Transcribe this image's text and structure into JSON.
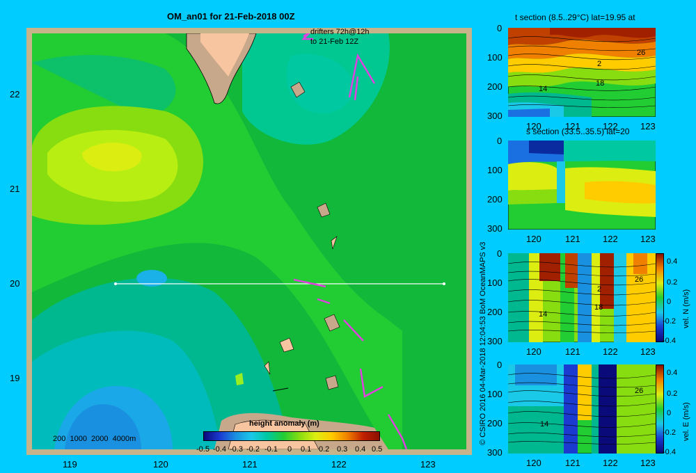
{
  "map": {
    "title": "OM_an01 for 21-Feb-2018 00Z",
    "drifters_line1": "drifters 72h@12h",
    "drifters_line2": "to 21-Feb 12Z",
    "depth_legend": "200  1000  2000  4000m",
    "lat_ticks": [
      "22",
      "21",
      "20",
      "19"
    ],
    "lon_ticks": [
      "119",
      "120",
      "121",
      "122",
      "123"
    ],
    "colorbar_title": "height anomaly  (m)",
    "colorbar_ticks": [
      "-0.5",
      "-0.4",
      "-0.3",
      "-0.2",
      "-0.1",
      "0",
      "0.1",
      "0.2",
      "0.3",
      "0.4",
      "0.5"
    ],
    "colors": {
      "land": "#f7c59f",
      "shelf": "#c8a88a",
      "frame": "#c8b48a",
      "drifter": "#e040e0"
    }
  },
  "credit": "© CSIRO 2016   04-Mar-2018 12:04:53 BoM OceanMAPS v3",
  "panels": [
    {
      "title": "t section (8.5..29°C) lat=19.95 at",
      "depth_ticks": [
        "0",
        "100",
        "200",
        "300"
      ],
      "lon_ticks": [
        "120",
        "121",
        "122",
        "123"
      ],
      "contours": [
        "26",
        "2",
        "18",
        "14"
      ]
    },
    {
      "title": "s section (33.5..35.5) lat=20",
      "depth_ticks": [
        "0",
        "100",
        "200",
        "300"
      ],
      "lon_ticks": [
        "120",
        "121",
        "122",
        "123"
      ]
    },
    {
      "title": "",
      "depth_ticks": [
        "0",
        "100",
        "200",
        "300"
      ],
      "lon_ticks": [
        "120",
        "121",
        "122",
        "123"
      ],
      "contours": [
        "26",
        "2",
        "18",
        "14"
      ],
      "cbar_label": "vel. N (m/s)",
      "cbar_ticks": [
        "0.4",
        "0.2",
        "0",
        "-0.2",
        "-0.4"
      ]
    },
    {
      "title": "",
      "depth_ticks": [
        "0",
        "100",
        "200",
        "300"
      ],
      "lon_ticks": [
        "120",
        "121",
        "122",
        "123"
      ],
      "contours": [
        "26",
        "14"
      ],
      "cbar_label": "vel. E (m/s)",
      "cbar_ticks": [
        "0.4",
        "0.2",
        "0",
        "-0.2",
        "-0.4"
      ]
    }
  ]
}
